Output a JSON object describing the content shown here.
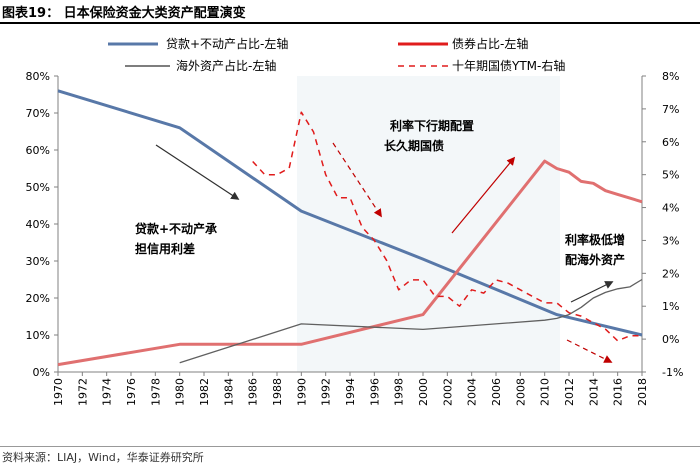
{
  "title": "图表19：  日本保险资金大类资产配置演变",
  "source": "资料来源：LIAJ，Wind，华泰证券研究所",
  "colors": {
    "loans": "#5878a8",
    "bonds": "#e07070",
    "overseas": "#606060",
    "jgb": "#e01c1c",
    "arrow_dark": "#303030",
    "arrow_red": "#c00000",
    "shade": "#f3f7f9"
  },
  "chart_data": {
    "type": "line",
    "legend": [
      {
        "label": "贷款+不动产占比-左轴"
      },
      {
        "label": "债券占比-左轴"
      },
      {
        "label": "海外资产占比-左轴"
      },
      {
        "label": "十年期国债YTM-右轴"
      }
    ],
    "x_ticks": [
      "1970",
      "1972",
      "1974",
      "1976",
      "1978",
      "1980",
      "1982",
      "1984",
      "1986",
      "1988",
      "1990",
      "1992",
      "1994",
      "1996",
      "1998",
      "2000",
      "2002",
      "2004",
      "2006",
      "2008",
      "2010",
      "2012",
      "2014",
      "2016",
      "2018"
    ],
    "y_left_ticks": [
      "0%",
      "10%",
      "20%",
      "30%",
      "40%",
      "50%",
      "60%",
      "70%",
      "80%"
    ],
    "y_right_ticks": [
      "-1%",
      "0%",
      "1%",
      "2%",
      "3%",
      "4%",
      "5%",
      "6%",
      "7%",
      "8%"
    ],
    "ylim_left": [
      0,
      80
    ],
    "ylim_right": [
      -1,
      8
    ],
    "xlim": [
      1970,
      2018
    ],
    "series": [
      {
        "name": "贷款+不动产占比-左轴",
        "axis": "left",
        "x": [
          1970,
          1980,
          1990,
          2000,
          2011,
          2018
        ],
        "y": [
          76,
          66,
          43.5,
          30.5,
          15.5,
          10
        ]
      },
      {
        "name": "债券占比-左轴",
        "axis": "left",
        "x": [
          1970,
          1980,
          1990,
          2000,
          2010,
          2011,
          2012,
          2013,
          2014,
          2015,
          2016,
          2017,
          2018
        ],
        "y": [
          2,
          7.5,
          7.5,
          15.5,
          57,
          55,
          54,
          51.5,
          51,
          49,
          48,
          47,
          46
        ]
      },
      {
        "name": "海外资产占比-左轴",
        "axis": "left",
        "x": [
          1980,
          1990,
          2000,
          2010,
          2011,
          2012,
          2013,
          2014,
          2015,
          2016,
          2017,
          2018
        ],
        "y": [
          2.5,
          13,
          11.5,
          14,
          14.5,
          15.5,
          17.5,
          20,
          21.5,
          22.5,
          23,
          25
        ]
      },
      {
        "name": "十年期国债YTM-右轴",
        "axis": "right",
        "x": [
          1986,
          1987,
          1988,
          1989,
          1990,
          1991,
          1992,
          1993,
          1994,
          1995,
          1996,
          1997,
          1998,
          1999,
          2000,
          2001,
          2002,
          2003,
          2004,
          2005,
          2006,
          2007,
          2008,
          2009,
          2010,
          2011,
          2012,
          2013,
          2014,
          2015,
          2016,
          2017,
          2018
        ],
        "y": [
          5.4,
          5.0,
          5.0,
          5.2,
          6.9,
          6.3,
          5.0,
          4.3,
          4.3,
          3.4,
          3.0,
          2.4,
          1.5,
          1.8,
          1.8,
          1.3,
          1.3,
          1.0,
          1.5,
          1.4,
          1.8,
          1.7,
          1.5,
          1.3,
          1.1,
          1.1,
          0.8,
          0.7,
          0.5,
          0.3,
          -0.05,
          0.1,
          0.1
        ]
      }
    ],
    "annotations": [
      {
        "lines": [
          "贷款+不动产承",
          "担信用利差"
        ]
      },
      {
        "lines": [
          "利率下行期配置",
          "长久期国债"
        ]
      },
      {
        "lines": [
          "利率极低增",
          "配海外资产"
        ]
      }
    ]
  }
}
